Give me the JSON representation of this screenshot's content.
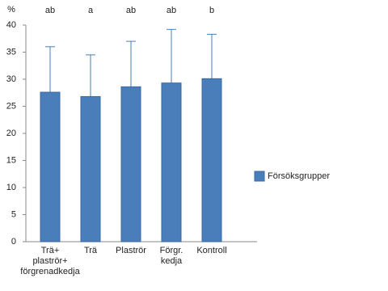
{
  "chart_data": {
    "type": "bar",
    "y_label": "%",
    "categories": [
      [
        "Trä+",
        "plaströr+",
        "förgrenadkedja"
      ],
      [
        "Trä"
      ],
      [
        "Plaströr"
      ],
      [
        "Förgr.",
        "kedja"
      ],
      [
        "Kontroll"
      ]
    ],
    "series": [
      {
        "name": "Försöksgrupper",
        "color": "#4a7ebb",
        "values": [
          27.6,
          26.8,
          28.6,
          29.3,
          30.1
        ],
        "errors": [
          8.4,
          7.7,
          8.4,
          9.9,
          8.2
        ]
      }
    ],
    "significance_labels": [
      "ab",
      "a",
      "ab",
      "ab",
      "b"
    ],
    "ylim": [
      0,
      40
    ],
    "yticks": [
      0,
      5,
      10,
      15,
      20,
      25,
      30,
      35,
      40
    ],
    "grid": false,
    "legend": "right"
  }
}
